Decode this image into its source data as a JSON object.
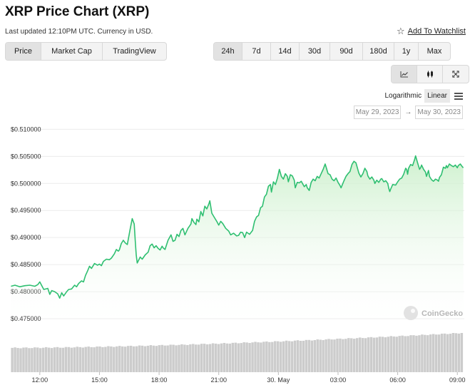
{
  "header": {
    "title": "XRP Price Chart (XRP)",
    "last_updated": "Last updated 12:10PM UTC. Currency in USD.",
    "watchlist_label": "Add To Watchlist"
  },
  "tabs": [
    {
      "label": "Price",
      "active": true
    },
    {
      "label": "Market Cap",
      "active": false
    },
    {
      "label": "TradingView",
      "active": false
    }
  ],
  "ranges": [
    {
      "label": "24h",
      "active": true
    },
    {
      "label": "7d",
      "active": false
    },
    {
      "label": "14d",
      "active": false
    },
    {
      "label": "30d",
      "active": false
    },
    {
      "label": "90d",
      "active": false
    },
    {
      "label": "180d",
      "active": false
    },
    {
      "label": "1y",
      "active": false
    },
    {
      "label": "Max",
      "active": false
    }
  ],
  "chart_types": [
    {
      "icon": "line-chart-icon",
      "active": true
    },
    {
      "icon": "candlestick-icon",
      "active": false
    },
    {
      "icon": "fullscreen-icon",
      "active": false
    }
  ],
  "scale": {
    "log_label": "Logarithmic",
    "linear_label": "Linear",
    "active": "Linear"
  },
  "date_range": {
    "from": "May 29, 2023",
    "to": "May 30, 2023",
    "arrow": "→"
  },
  "watermark": "CoinGecko",
  "colors": {
    "line": "#2fbf71",
    "fill_top": "#c9efc9",
    "volume": "#cccccc"
  },
  "chart_data": {
    "type": "area",
    "title": "",
    "xlabel": "",
    "ylabel": "",
    "ylim": [
      0.4725,
      0.5115
    ],
    "xlim": [
      10.5,
      33.35
    ],
    "y_ticks": [
      {
        "value": 0.51,
        "label": "$0.510000"
      },
      {
        "value": 0.505,
        "label": "$0.505000"
      },
      {
        "value": 0.5,
        "label": "$0.500000"
      },
      {
        "value": 0.495,
        "label": "$0.495000"
      },
      {
        "value": 0.49,
        "label": "$0.490000"
      },
      {
        "value": 0.485,
        "label": "$0.485000"
      },
      {
        "value": 0.48,
        "label": "$0.480000"
      },
      {
        "value": 0.475,
        "label": "$0.475000"
      }
    ],
    "x_ticks": [
      {
        "value": 12,
        "label": "12:00"
      },
      {
        "value": 15,
        "label": "15:00"
      },
      {
        "value": 18,
        "label": "18:00"
      },
      {
        "value": 21,
        "label": "21:00"
      },
      {
        "value": 24,
        "label": "30. May"
      },
      {
        "value": 27,
        "label": "03:00"
      },
      {
        "value": 30,
        "label": "06:00"
      },
      {
        "value": 33,
        "label": "09:00"
      }
    ],
    "grid": true,
    "series": [
      {
        "points": [
          [
            10.55,
            0.481
          ],
          [
            10.75,
            0.4812
          ],
          [
            11.0,
            0.4809
          ],
          [
            11.25,
            0.4811
          ],
          [
            11.5,
            0.4812
          ],
          [
            11.75,
            0.481
          ],
          [
            11.9,
            0.4813
          ],
          [
            12.0,
            0.4818
          ],
          [
            12.1,
            0.4811
          ],
          [
            12.2,
            0.4804
          ],
          [
            12.4,
            0.4806
          ],
          [
            12.5,
            0.4795
          ],
          [
            12.6,
            0.4802
          ],
          [
            12.75,
            0.48
          ],
          [
            12.9,
            0.4796
          ],
          [
            13.0,
            0.4788
          ],
          [
            13.1,
            0.4798
          ],
          [
            13.2,
            0.4792
          ],
          [
            13.35,
            0.48
          ],
          [
            13.45,
            0.4804
          ],
          [
            13.6,
            0.4805
          ],
          [
            13.75,
            0.4812
          ],
          [
            13.85,
            0.4809
          ],
          [
            13.95,
            0.4815
          ],
          [
            14.1,
            0.482
          ],
          [
            14.2,
            0.4818
          ],
          [
            14.3,
            0.483
          ],
          [
            14.4,
            0.4838
          ],
          [
            14.5,
            0.4847
          ],
          [
            14.6,
            0.4843
          ],
          [
            14.75,
            0.4852
          ],
          [
            14.9,
            0.4849
          ],
          [
            15.0,
            0.4851
          ],
          [
            15.1,
            0.4848
          ],
          [
            15.2,
            0.4856
          ],
          [
            15.35,
            0.486
          ],
          [
            15.5,
            0.4859
          ],
          [
            15.6,
            0.4862
          ],
          [
            15.75,
            0.487
          ],
          [
            15.85,
            0.4878
          ],
          [
            15.95,
            0.4875
          ],
          [
            16.0,
            0.4877
          ],
          [
            16.1,
            0.4889
          ],
          [
            16.2,
            0.4895
          ],
          [
            16.3,
            0.489
          ],
          [
            16.4,
            0.4887
          ],
          [
            16.55,
            0.4917
          ],
          [
            16.65,
            0.4935
          ],
          [
            16.75,
            0.4925
          ],
          [
            16.8,
            0.4895
          ],
          [
            16.85,
            0.4868
          ],
          [
            16.9,
            0.4853
          ],
          [
            17.05,
            0.4864
          ],
          [
            17.15,
            0.486
          ],
          [
            17.3,
            0.4868
          ],
          [
            17.45,
            0.4873
          ],
          [
            17.55,
            0.4885
          ],
          [
            17.65,
            0.4888
          ],
          [
            17.75,
            0.4881
          ],
          [
            17.85,
            0.4885
          ],
          [
            17.95,
            0.488
          ],
          [
            18.05,
            0.4877
          ],
          [
            18.15,
            0.4884
          ],
          [
            18.2,
            0.4881
          ],
          [
            18.3,
            0.4878
          ],
          [
            18.45,
            0.4895
          ],
          [
            18.6,
            0.4905
          ],
          [
            18.7,
            0.4893
          ],
          [
            18.8,
            0.4895
          ],
          [
            18.9,
            0.4906
          ],
          [
            19.0,
            0.4902
          ],
          [
            19.1,
            0.4913
          ],
          [
            19.2,
            0.4917
          ],
          [
            19.3,
            0.4905
          ],
          [
            19.45,
            0.4917
          ],
          [
            19.6,
            0.4925
          ],
          [
            19.65,
            0.4935
          ],
          [
            19.75,
            0.4928
          ],
          [
            19.85,
            0.4924
          ],
          [
            19.9,
            0.4934
          ],
          [
            20.0,
            0.4929
          ],
          [
            20.1,
            0.4948
          ],
          [
            20.2,
            0.494
          ],
          [
            20.3,
            0.4958
          ],
          [
            20.4,
            0.4953
          ],
          [
            20.5,
            0.4962
          ],
          [
            20.55,
            0.4968
          ],
          [
            20.65,
            0.4945
          ],
          [
            20.8,
            0.4936
          ],
          [
            20.9,
            0.493
          ],
          [
            21.0,
            0.4923
          ],
          [
            21.1,
            0.493
          ],
          [
            21.2,
            0.4926
          ],
          [
            21.35,
            0.4917
          ],
          [
            21.5,
            0.4912
          ],
          [
            21.6,
            0.4905
          ],
          [
            21.75,
            0.4908
          ],
          [
            21.9,
            0.4903
          ],
          [
            22.0,
            0.4904
          ],
          [
            22.1,
            0.491
          ],
          [
            22.2,
            0.4909
          ],
          [
            22.3,
            0.49
          ],
          [
            22.4,
            0.491
          ],
          [
            22.55,
            0.4906
          ],
          [
            22.7,
            0.4913
          ],
          [
            22.8,
            0.493
          ],
          [
            22.9,
            0.4938
          ],
          [
            23.0,
            0.4941
          ],
          [
            23.1,
            0.4955
          ],
          [
            23.2,
            0.4958
          ],
          [
            23.3,
            0.4975
          ],
          [
            23.4,
            0.498
          ],
          [
            23.5,
            0.4995
          ],
          [
            23.6,
            0.4998
          ],
          [
            23.65,
            0.4984
          ],
          [
            23.75,
            0.5003
          ],
          [
            23.85,
            0.4998
          ],
          [
            23.95,
            0.501
          ],
          [
            24.05,
            0.5026
          ],
          [
            24.15,
            0.5013
          ],
          [
            24.25,
            0.5008
          ],
          [
            24.35,
            0.5018
          ],
          [
            24.45,
            0.5013
          ],
          [
            24.5,
            0.5003
          ],
          [
            24.6,
            0.5016
          ],
          [
            24.7,
            0.5014
          ],
          [
            24.8,
            0.5006
          ],
          [
            24.85,
            0.4992
          ],
          [
            24.95,
            0.5002
          ],
          [
            25.05,
            0.5001
          ],
          [
            25.15,
            0.5004
          ],
          [
            25.3,
            0.4994
          ],
          [
            25.4,
            0.4998
          ],
          [
            25.45,
            0.4992
          ],
          [
            25.55,
            0.4987
          ],
          [
            25.65,
            0.5002
          ],
          [
            25.75,
            0.5008
          ],
          [
            25.85,
            0.5005
          ],
          [
            25.95,
            0.5013
          ],
          [
            26.05,
            0.501
          ],
          [
            26.15,
            0.5018
          ],
          [
            26.25,
            0.5026
          ],
          [
            26.35,
            0.5036
          ],
          [
            26.4,
            0.503
          ],
          [
            26.5,
            0.5018
          ],
          [
            26.6,
            0.5016
          ],
          [
            26.7,
            0.5008
          ],
          [
            26.8,
            0.5005
          ],
          [
            26.9,
            0.501
          ],
          [
            27.0,
            0.5002
          ],
          [
            27.1,
            0.4996
          ],
          [
            27.15,
            0.4992
          ],
          [
            27.3,
            0.5005
          ],
          [
            27.4,
            0.5013
          ],
          [
            27.5,
            0.5018
          ],
          [
            27.6,
            0.5022
          ],
          [
            27.7,
            0.5035
          ],
          [
            27.8,
            0.5041
          ],
          [
            27.9,
            0.5038
          ],
          [
            28.0,
            0.5025
          ],
          [
            28.05,
            0.5019
          ],
          [
            28.15,
            0.5012
          ],
          [
            28.25,
            0.5018
          ],
          [
            28.35,
            0.5028
          ],
          [
            28.45,
            0.5022
          ],
          [
            28.5,
            0.5014
          ],
          [
            28.6,
            0.5008
          ],
          [
            28.7,
            0.5012
          ],
          [
            28.8,
            0.5006
          ],
          [
            28.85,
            0.5
          ],
          [
            28.95,
            0.5006
          ],
          [
            29.05,
            0.5002
          ],
          [
            29.15,
            0.5008
          ],
          [
            29.2,
            0.5009
          ],
          [
            29.3,
            0.5003
          ],
          [
            29.4,
            0.5005
          ],
          [
            29.5,
            0.5
          ],
          [
            29.55,
            0.4991
          ],
          [
            29.6,
            0.4985
          ],
          [
            29.65,
            0.499
          ],
          [
            29.75,
            0.4998
          ],
          [
            29.9,
            0.4997
          ],
          [
            30.0,
            0.5003
          ],
          [
            30.1,
            0.5008
          ],
          [
            30.2,
            0.501
          ],
          [
            30.3,
            0.5017
          ],
          [
            30.4,
            0.5028
          ],
          [
            30.45,
            0.5026
          ],
          [
            30.5,
            0.5017
          ],
          [
            30.55,
            0.5028
          ],
          [
            30.65,
            0.5035
          ],
          [
            30.75,
            0.5033
          ],
          [
            30.85,
            0.5044
          ],
          [
            30.9,
            0.5051
          ],
          [
            31.0,
            0.5038
          ],
          [
            31.1,
            0.5026
          ],
          [
            31.15,
            0.5029
          ],
          [
            31.2,
            0.5034
          ],
          [
            31.3,
            0.5026
          ],
          [
            31.4,
            0.5021
          ],
          [
            31.45,
            0.5013
          ],
          [
            31.55,
            0.5024
          ],
          [
            31.6,
            0.5013
          ],
          [
            31.7,
            0.5007
          ],
          [
            31.8,
            0.5004
          ],
          [
            31.9,
            0.5008
          ],
          [
            32.0,
            0.5006
          ],
          [
            32.05,
            0.5004
          ],
          [
            32.1,
            0.5011
          ],
          [
            32.2,
            0.5016
          ],
          [
            32.3,
            0.503
          ],
          [
            32.4,
            0.5028
          ],
          [
            32.45,
            0.5033
          ],
          [
            32.5,
            0.5029
          ],
          [
            32.6,
            0.5036
          ],
          [
            32.7,
            0.5033
          ],
          [
            32.8,
            0.5031
          ],
          [
            32.9,
            0.5034
          ],
          [
            33.0,
            0.5029
          ],
          [
            33.05,
            0.5033
          ],
          [
            33.15,
            0.5036
          ],
          [
            33.25,
            0.5031
          ],
          [
            33.3,
            0.5029
          ]
        ]
      }
    ],
    "volume": {
      "start": 10.55,
      "end": 33.3,
      "bars": 160,
      "levels_start": 0.62,
      "levels_end": 1.0
    }
  }
}
